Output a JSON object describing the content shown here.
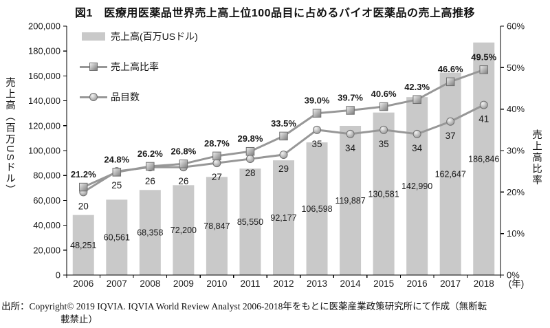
{
  "title": "図1　医療用医薬品世界売上高上位100品目に占めるバイオ医薬品の売上高推移",
  "legend": {
    "sales_label": "売上高(百万USドル)",
    "ratio_label": "売上高比率",
    "items_label": "品目数"
  },
  "axes": {
    "left_title": "売上高（百万USドル）",
    "right_title": "売上高比率",
    "x_unit": "(年)"
  },
  "chart_data": {
    "type": "bar",
    "combo": "bar + two lines (secondary axis)",
    "title": "図1　医療用医薬品世界売上高上位100品目に占めるバイオ医薬品の売上高推移",
    "categories": [
      "2006",
      "2007",
      "2008",
      "2009",
      "2010",
      "2011",
      "2012",
      "2013",
      "2014",
      "2015",
      "2016",
      "2017",
      "2018"
    ],
    "series": [
      {
        "name": "売上高(百万USドル)",
        "type": "bar",
        "axis": "left",
        "values": [
          48251,
          60561,
          68358,
          72200,
          78847,
          85550,
          92177,
          106598,
          119887,
          130581,
          142990,
          162647,
          186846
        ],
        "labels": [
          "48,251",
          "60,561",
          "68,358",
          "72,200",
          "78,847",
          "85,550",
          "92,177",
          "106,598",
          "119,887",
          "130,581",
          "142,990",
          "162,647",
          "186,846"
        ]
      },
      {
        "name": "売上高比率",
        "type": "line",
        "marker": "square",
        "axis": "right",
        "values": [
          21.2,
          24.8,
          26.2,
          26.8,
          28.7,
          29.8,
          33.5,
          39.0,
          39.7,
          40.6,
          42.3,
          46.6,
          49.5
        ],
        "labels": [
          "21.2%",
          "24.8%",
          "26.2%",
          "26.8%",
          "28.7%",
          "29.8%",
          "33.5%",
          "39.0%",
          "39.7%",
          "40.6%",
          "42.3%",
          "46.6%",
          "49.5%"
        ]
      },
      {
        "name": "品目数",
        "type": "line",
        "marker": "circle",
        "axis": "right",
        "values": [
          20,
          25,
          26,
          26,
          27,
          28,
          29,
          35,
          34,
          35,
          34,
          37,
          41
        ],
        "labels": [
          "20",
          "25",
          "26",
          "26",
          "27",
          "28",
          "29",
          "35",
          "34",
          "35",
          "34",
          "37",
          "41"
        ]
      }
    ],
    "left_axis": {
      "label": "売上高（百万USドル）",
      "min": 0,
      "max": 200000,
      "step": 20000,
      "tick_labels": [
        "0",
        "20,000",
        "40,000",
        "60,000",
        "80,000",
        "100,000",
        "120,000",
        "140,000",
        "160,000",
        "180,000",
        "200,000"
      ]
    },
    "right_axis": {
      "label": "売上高比率",
      "min": 0,
      "max": 60,
      "step": 10,
      "tick_labels": [
        "0%",
        "10%",
        "20%",
        "30%",
        "40%",
        "50%",
        "60%"
      ]
    },
    "x_unit": "(年)",
    "grid": "off",
    "legend_position": "inside top-left"
  },
  "source": {
    "line1": "出所：Copyright© 2019 IQVIA. IQVIA World Review Analyst 2006-2018年をもとに医薬産業政策研究所にて作成（無断転",
    "line2": "載禁止）"
  },
  "colors": {
    "bar": "#c9c9c9",
    "line": "#979797",
    "marker_stroke": "#6f6f6f",
    "axis": "#000000",
    "text": "#1a1a1a"
  }
}
